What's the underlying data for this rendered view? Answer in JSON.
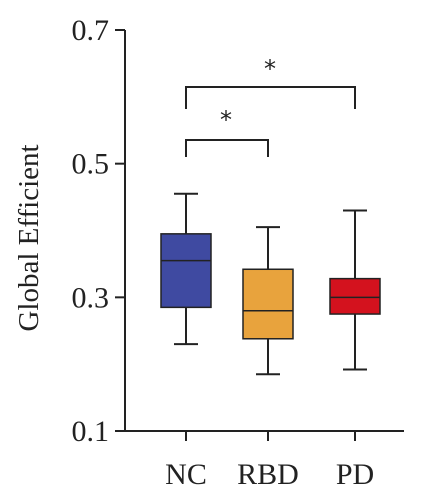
{
  "chart_data": {
    "type": "box",
    "ylabel": "Global Efficient",
    "xlabel": "",
    "ylim": [
      0.1,
      0.7
    ],
    "yticks": [
      "0.1",
      "0.3",
      "0.5",
      "0.7"
    ],
    "categories": [
      "NC",
      "RBD",
      "PD"
    ],
    "boxes": [
      {
        "category": "NC",
        "min": 0.23,
        "q1": 0.285,
        "median": 0.355,
        "q3": 0.395,
        "max": 0.455,
        "color": "#3f4aa1"
      },
      {
        "category": "RBD",
        "min": 0.185,
        "q1": 0.238,
        "median": 0.28,
        "q3": 0.342,
        "max": 0.405,
        "color": "#e8a33d"
      },
      {
        "category": "PD",
        "min": 0.192,
        "q1": 0.275,
        "median": 0.3,
        "q3": 0.328,
        "max": 0.43,
        "color": "#d4121e"
      }
    ],
    "significance": [
      {
        "from": "NC",
        "to": "RBD",
        "label": "*"
      },
      {
        "from": "NC",
        "to": "PD",
        "label": "*"
      }
    ],
    "grid": false
  }
}
